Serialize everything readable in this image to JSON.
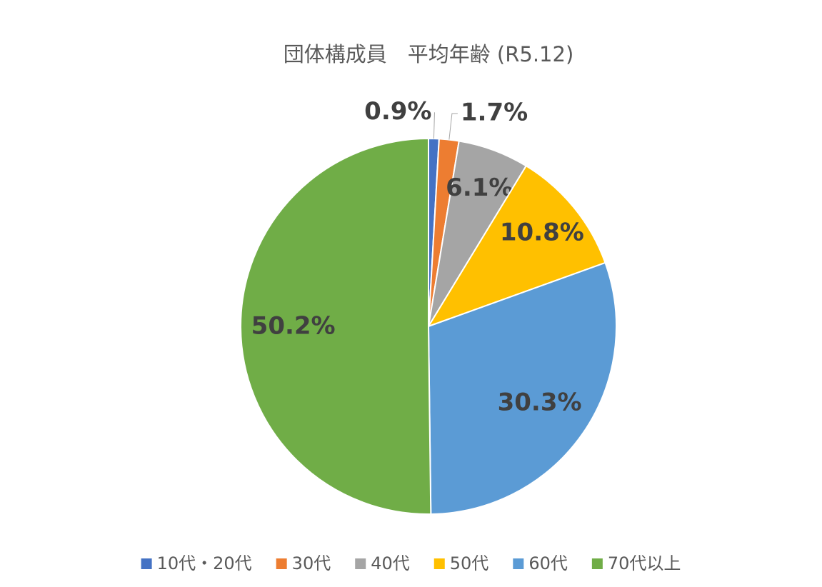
{
  "chart_data": {
    "type": "pie",
    "title": "団体構成員　平均年齢 (R5.12)",
    "categories": [
      "10代・20代",
      "30代",
      "40代",
      "50代",
      "60代",
      "70代以上"
    ],
    "values": [
      0.9,
      1.7,
      6.1,
      10.8,
      30.3,
      50.2
    ],
    "value_labels": [
      "0.9%",
      "1.7%",
      "6.1%",
      "10.8%",
      "30.3%",
      "50.2%"
    ],
    "colors": [
      "#4472c4",
      "#ed7d31",
      "#a5a5a5",
      "#ffc000",
      "#5b9bd5",
      "#70ad47"
    ],
    "legend": "bottom"
  }
}
